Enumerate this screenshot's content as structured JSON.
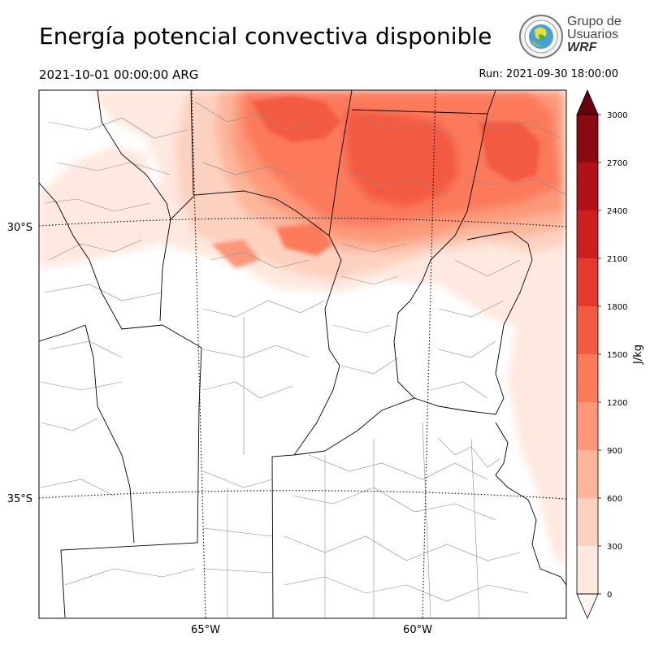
{
  "header": {
    "title": "Energía potencial convectiva disponible",
    "valid_time": "2021-10-01 00:00:00 ARG",
    "run_time": "Run: 2021-09-30 18:00:00"
  },
  "logo": {
    "line1": "Grupo de",
    "line2": "Usuarios",
    "line3": "WRF"
  },
  "map": {
    "field": "CAPE",
    "colors": {
      "land_border": "#000000",
      "admin_border": "#808080",
      "graticule": "#000000"
    },
    "lat_labels": [
      "30°S",
      "35°S"
    ],
    "lon_labels": [
      "65°W",
      "60°W"
    ]
  },
  "colorbar": {
    "unit_label": "J/kg",
    "levels": [
      0,
      300,
      600,
      900,
      1200,
      1500,
      1800,
      2100,
      2400,
      2700,
      3000
    ],
    "tick_labels": [
      "0",
      "300",
      "600",
      "900",
      "1200",
      "1500",
      "1800",
      "2100",
      "2400",
      "2700",
      "3000"
    ],
    "colors": [
      "#fee8df",
      "#fdd1c0",
      "#fcb59a",
      "#fc9879",
      "#fb7a5b",
      "#f35a43",
      "#e73a2e",
      "#cd1f20",
      "#b11217",
      "#8a0a12"
    ],
    "over_color": "#67000d",
    "under_color": "#fff5f0",
    "extend": "both"
  }
}
